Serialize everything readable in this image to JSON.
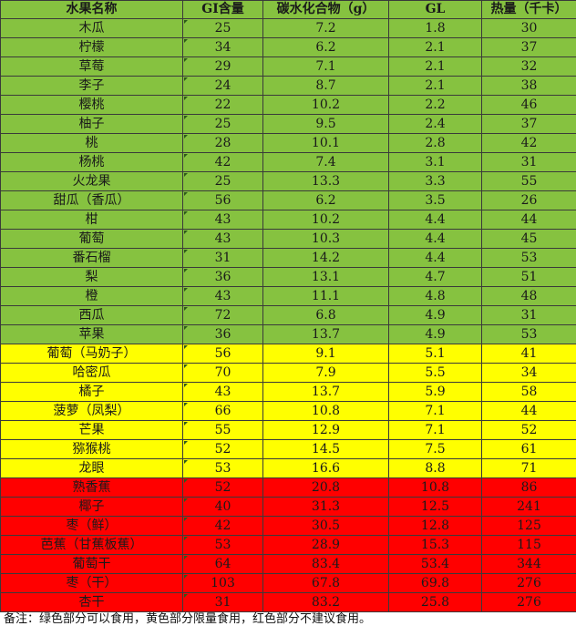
{
  "table": {
    "headers": [
      "水果名称",
      "GI含量",
      "碳水化合物（g）",
      "GL",
      "热量（千卡）"
    ],
    "rows": [
      {
        "name": "木瓜",
        "gi": "25",
        "carb": "7.2",
        "gl": "1.8",
        "kcal": "30",
        "zone": "green"
      },
      {
        "name": "柠檬",
        "gi": "34",
        "carb": "6.2",
        "gl": "2.1",
        "kcal": "37",
        "zone": "green"
      },
      {
        "name": "草莓",
        "gi": "29",
        "carb": "7.1",
        "gl": "2.1",
        "kcal": "32",
        "zone": "green"
      },
      {
        "name": "李子",
        "gi": "24",
        "carb": "8.7",
        "gl": "2.1",
        "kcal": "38",
        "zone": "green"
      },
      {
        "name": "樱桃",
        "gi": "22",
        "carb": "10.2",
        "gl": "2.2",
        "kcal": "46",
        "zone": "green"
      },
      {
        "name": "柚子",
        "gi": "25",
        "carb": "9.5",
        "gl": "2.4",
        "kcal": "37",
        "zone": "green"
      },
      {
        "name": "桃",
        "gi": "28",
        "carb": "10.1",
        "gl": "2.8",
        "kcal": "42",
        "zone": "green"
      },
      {
        "name": "杨桃",
        "gi": "42",
        "carb": "7.4",
        "gl": "3.1",
        "kcal": "31",
        "zone": "green"
      },
      {
        "name": "火龙果",
        "gi": "25",
        "carb": "13.3",
        "gl": "3.3",
        "kcal": "55",
        "zone": "green"
      },
      {
        "name": "甜瓜（香瓜）",
        "gi": "56",
        "carb": "6.2",
        "gl": "3.5",
        "kcal": "26",
        "zone": "green"
      },
      {
        "name": "柑",
        "gi": "43",
        "carb": "10.2",
        "gl": "4.4",
        "kcal": "44",
        "zone": "green"
      },
      {
        "name": "葡萄",
        "gi": "43",
        "carb": "10.3",
        "gl": "4.4",
        "kcal": "45",
        "zone": "green"
      },
      {
        "name": "番石榴",
        "gi": "31",
        "carb": "14.2",
        "gl": "4.4",
        "kcal": "53",
        "zone": "green"
      },
      {
        "name": "梨",
        "gi": "36",
        "carb": "13.1",
        "gl": "4.7",
        "kcal": "51",
        "zone": "green"
      },
      {
        "name": "橙",
        "gi": "43",
        "carb": "11.1",
        "gl": "4.8",
        "kcal": "48",
        "zone": "green"
      },
      {
        "name": "西瓜",
        "gi": "72",
        "carb": "6.8",
        "gl": "4.9",
        "kcal": "31",
        "zone": "green"
      },
      {
        "name": "苹果",
        "gi": "36",
        "carb": "13.7",
        "gl": "4.9",
        "kcal": "53",
        "zone": "green"
      },
      {
        "name": "葡萄（马奶子）",
        "gi": "56",
        "carb": "9.1",
        "gl": "5.1",
        "kcal": "41",
        "zone": "yellow"
      },
      {
        "name": "哈密瓜",
        "gi": "70",
        "carb": "7.9",
        "gl": "5.5",
        "kcal": "34",
        "zone": "yellow"
      },
      {
        "name": "橘子",
        "gi": "43",
        "carb": "13.7",
        "gl": "5.9",
        "kcal": "58",
        "zone": "yellow"
      },
      {
        "name": "菠萝（凤梨）",
        "gi": "66",
        "carb": "10.8",
        "gl": "7.1",
        "kcal": "44",
        "zone": "yellow"
      },
      {
        "name": "芒果",
        "gi": "55",
        "carb": "12.9",
        "gl": "7.1",
        "kcal": "52",
        "zone": "yellow"
      },
      {
        "name": "猕猴桃",
        "gi": "52",
        "carb": "14.5",
        "gl": "7.5",
        "kcal": "61",
        "zone": "yellow"
      },
      {
        "name": "龙眼",
        "gi": "53",
        "carb": "16.6",
        "gl": "8.8",
        "kcal": "71",
        "zone": "yellow"
      },
      {
        "name": "熟香蕉",
        "gi": "52",
        "carb": "20.8",
        "gl": "10.8",
        "kcal": "86",
        "zone": "red"
      },
      {
        "name": "椰子",
        "gi": "40",
        "carb": "31.3",
        "gl": "12.5",
        "kcal": "241",
        "zone": "red"
      },
      {
        "name": "枣（鲜）",
        "gi": "42",
        "carb": "30.5",
        "gl": "12.8",
        "kcal": "125",
        "zone": "red"
      },
      {
        "name": "芭蕉（甘蕉板蕉）",
        "gi": "53",
        "carb": "28.9",
        "gl": "15.3",
        "kcal": "115",
        "zone": "red"
      },
      {
        "name": "葡萄干",
        "gi": "64",
        "carb": "83.4",
        "gl": "53.4",
        "kcal": "344",
        "zone": "red"
      },
      {
        "name": "枣（干）",
        "gi": "103",
        "carb": "67.8",
        "gl": "69.8",
        "kcal": "276",
        "zone": "red"
      },
      {
        "name": "杏干",
        "gi": "31",
        "carb": "83.2",
        "gl": "25.8",
        "kcal": "276",
        "zone": "red"
      }
    ]
  },
  "note": "备注：绿色部分可以食用，黄色部分限量食用，红色部分不建议食用。",
  "colors": {
    "green": "#86c240",
    "yellow": "#ffff00",
    "red": "#ff0000"
  }
}
